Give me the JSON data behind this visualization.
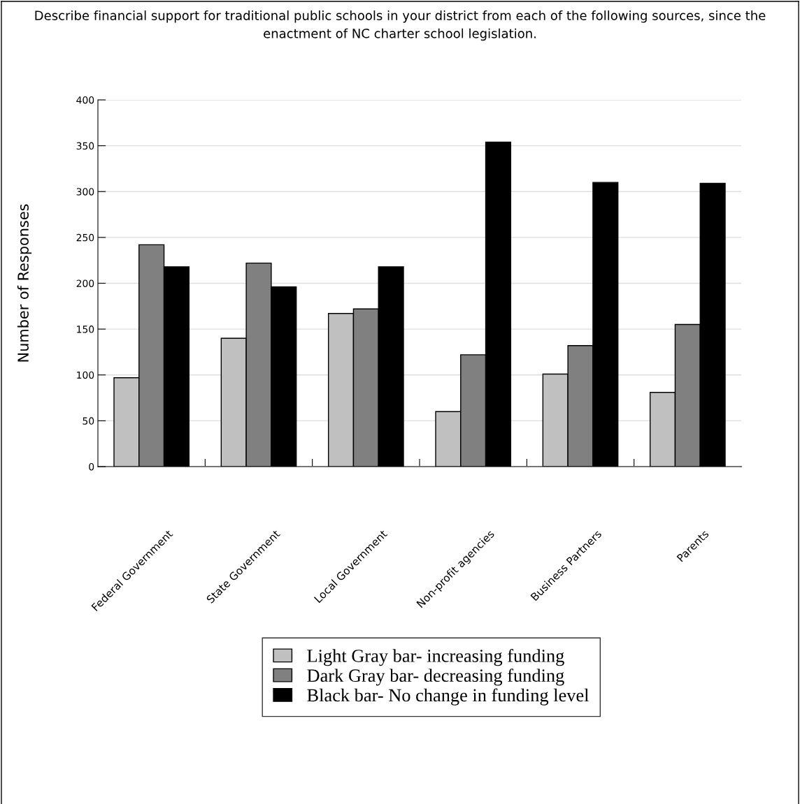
{
  "chart_data": {
    "type": "bar",
    "title": "Describe financial support for traditional public schools in your district from each of the following sources, since the enactment of NC charter school legislation.",
    "ylabel": "Number of Responses",
    "categories": [
      "Federal Government",
      "State Government",
      "Local Government",
      "Non-profit agencies",
      "Business Partners",
      "Parents"
    ],
    "series": [
      {
        "name": "Light Gray bar- increasing funding",
        "color": "#c0c0c0",
        "values": [
          97,
          140,
          167,
          60,
          101,
          81
        ]
      },
      {
        "name": "Dark Gray bar- decreasing funding",
        "color": "#808080",
        "values": [
          242,
          222,
          172,
          122,
          132,
          155
        ]
      },
      {
        "name": "Black bar- No change in funding level",
        "color": "#000000",
        "values": [
          218,
          196,
          218,
          354,
          310,
          309
        ]
      }
    ],
    "ylim": [
      0,
      400
    ],
    "yticks": [
      0,
      50,
      100,
      150,
      200,
      250,
      300,
      350,
      400
    ],
    "grid": "y",
    "legend": "bottom"
  }
}
